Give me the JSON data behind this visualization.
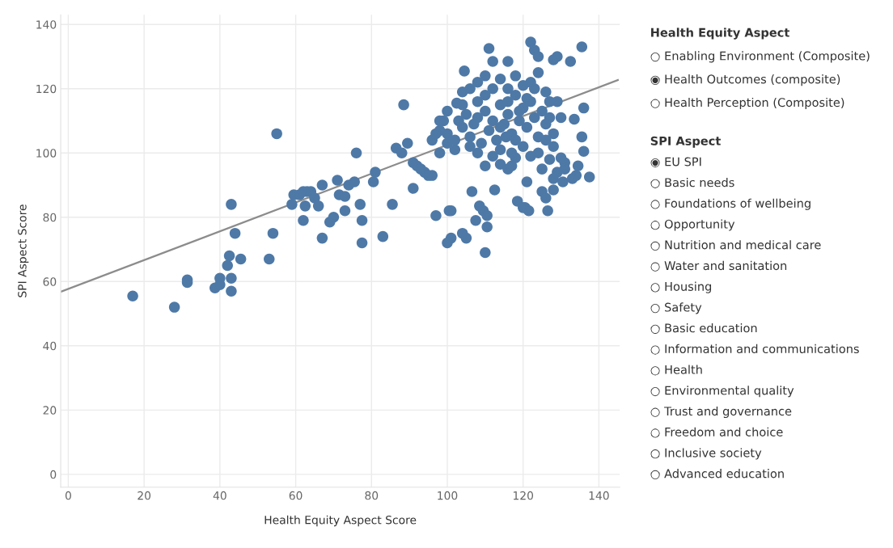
{
  "chart_data": [
    {
      "type": "scatter",
      "xlabel": "Health Equity Aspect Score",
      "ylabel": "SPI Aspect Score",
      "xlim": [
        -2,
        145.5
      ],
      "ylim": [
        -4,
        143
      ],
      "xticks": [
        0,
        20,
        40,
        60,
        80,
        100,
        120,
        140
      ],
      "yticks": [
        0,
        20,
        40,
        60,
        80,
        100,
        120,
        140
      ],
      "grid": true,
      "marker": "circle",
      "series": [
        {
          "color": "#4e79a7",
          "x": [
            17,
            28,
            31.4,
            31.4,
            38.7,
            40,
            40,
            42,
            42.5,
            43,
            43,
            43,
            44,
            45.5,
            53,
            54,
            55,
            59,
            59.5,
            61,
            62,
            63,
            62.5,
            64,
            62,
            65,
            66,
            67,
            67,
            69,
            70,
            71,
            71.5,
            73,
            73,
            74,
            75.5,
            76,
            77,
            77.5,
            77.5,
            80.5,
            81,
            83,
            85.5,
            86.5,
            88,
            88.5,
            89.5,
            91,
            91,
            92,
            93,
            94,
            95,
            96,
            97,
            98,
            98,
            99,
            100,
            100.5,
            100,
            101,
            101,
            102.5,
            104.5,
            104,
            105,
            106.5,
            107.5,
            108.5,
            109.5,
            110,
            110.5,
            110.5,
            111,
            112,
            112.5,
            114,
            115.5,
            116,
            117,
            118,
            118.5,
            120,
            120.5,
            121.5,
            122,
            123,
            124,
            125,
            126,
            126.5,
            128,
            128,
            129,
            130,
            130.5,
            131,
            132.5,
            133.5,
            134,
            134.5,
            135.5,
            136,
            136,
            137.5,
            135.5,
            103,
            104,
            105,
            106,
            107,
            108,
            109,
            110,
            111,
            112,
            113,
            114,
            115,
            116,
            117,
            118,
            119,
            120,
            121,
            122,
            123,
            124,
            125,
            126,
            127,
            128,
            104,
            106,
            108,
            110,
            112,
            114,
            116,
            118,
            120,
            122,
            124,
            126,
            108,
            112,
            116,
            120,
            124,
            128,
            102,
            100,
            98,
            106,
            110,
            114,
            118,
            122,
            126,
            130,
            129,
            127,
            102,
            96,
            97,
            100,
            116,
            119,
            121,
            123,
            110,
            104,
            108,
            114,
            117,
            121,
            125,
            127,
            129,
            131,
            133,
            128
          ],
          "values": [
            55.5,
            52,
            60.5,
            59.7,
            58,
            59,
            61,
            65,
            68,
            84,
            61,
            57,
            75,
            67,
            67,
            75,
            106,
            84,
            87,
            87,
            88,
            88,
            83.5,
            88,
            79,
            86,
            83.5,
            90,
            73.5,
            78.5,
            80,
            91.5,
            87,
            86.5,
            82,
            90,
            91,
            100,
            84,
            79,
            72,
            91,
            94,
            74,
            84,
            101.5,
            100,
            115,
            103,
            97,
            89,
            96,
            95,
            94,
            93,
            93,
            80.5,
            100,
            107,
            110,
            113,
            82,
            72,
            73.5,
            82,
            115.5,
            125.5,
            75,
            73.5,
            88,
            79,
            83.5,
            82,
            69,
            80.5,
            77,
            132.5,
            128.5,
            88.5,
            96.5,
            105,
            128.5,
            100,
            98.5,
            85,
            83,
            83,
            82,
            134.5,
            132,
            130,
            88,
            86,
            82,
            88.5,
            129,
            130,
            98.5,
            91,
            97,
            128.5,
            110.5,
            93,
            96,
            133,
            114,
            100.5,
            92.5,
            105,
            110,
            108,
            112,
            105,
            109,
            111,
            103,
            113,
            107,
            110,
            104,
            115,
            109,
            112,
            106,
            118,
            110,
            114,
            108,
            116,
            111,
            105,
            113,
            109,
            116,
            102,
            115,
            120,
            122,
            118,
            120,
            123,
            120,
            124,
            121,
            122,
            125,
            119,
            100,
            99,
            95,
            102,
            100,
            106,
            104,
            106,
            110,
            102,
            96,
            108,
            104,
            99,
            104,
            111,
            116,
            111,
            101,
            104,
            106,
            103,
            116,
            113,
            117,
            120,
            124,
            119,
            116,
            101,
            96,
            91,
            95,
            98,
            94,
            95,
            92,
            92
          ]
        },
        {
          "type": "line",
          "color": "#8c8c8c",
          "marker": "none",
          "x": [
            -2,
            145
          ],
          "values": [
            56.8,
            122.7
          ]
        }
      ]
    },
    {
      "type": "other",
      "title": "Health Equity Aspect",
      "annotations": [
        "○ Enabling Environment (Composite)",
        "◉ Health Outcomes (composite)",
        "○ Health Perception (Composite)"
      ]
    },
    {
      "type": "other",
      "title": "SPI Aspect",
      "annotations": [
        "◉ EU SPI",
        "○ Basic needs",
        "○ Foundations of wellbeing",
        "○ Opportunity",
        "○ Nutrition and medical care",
        "○ Water and sanitation",
        "○ Housing",
        "○ Safety",
        "○ Basic education",
        "○ Information and communications",
        "○ Health",
        "○ Environmental quality",
        "○ Trust and governance",
        "○ Freedom and choice",
        "○ Inclusive society",
        "○ Advanced education"
      ]
    }
  ]
}
